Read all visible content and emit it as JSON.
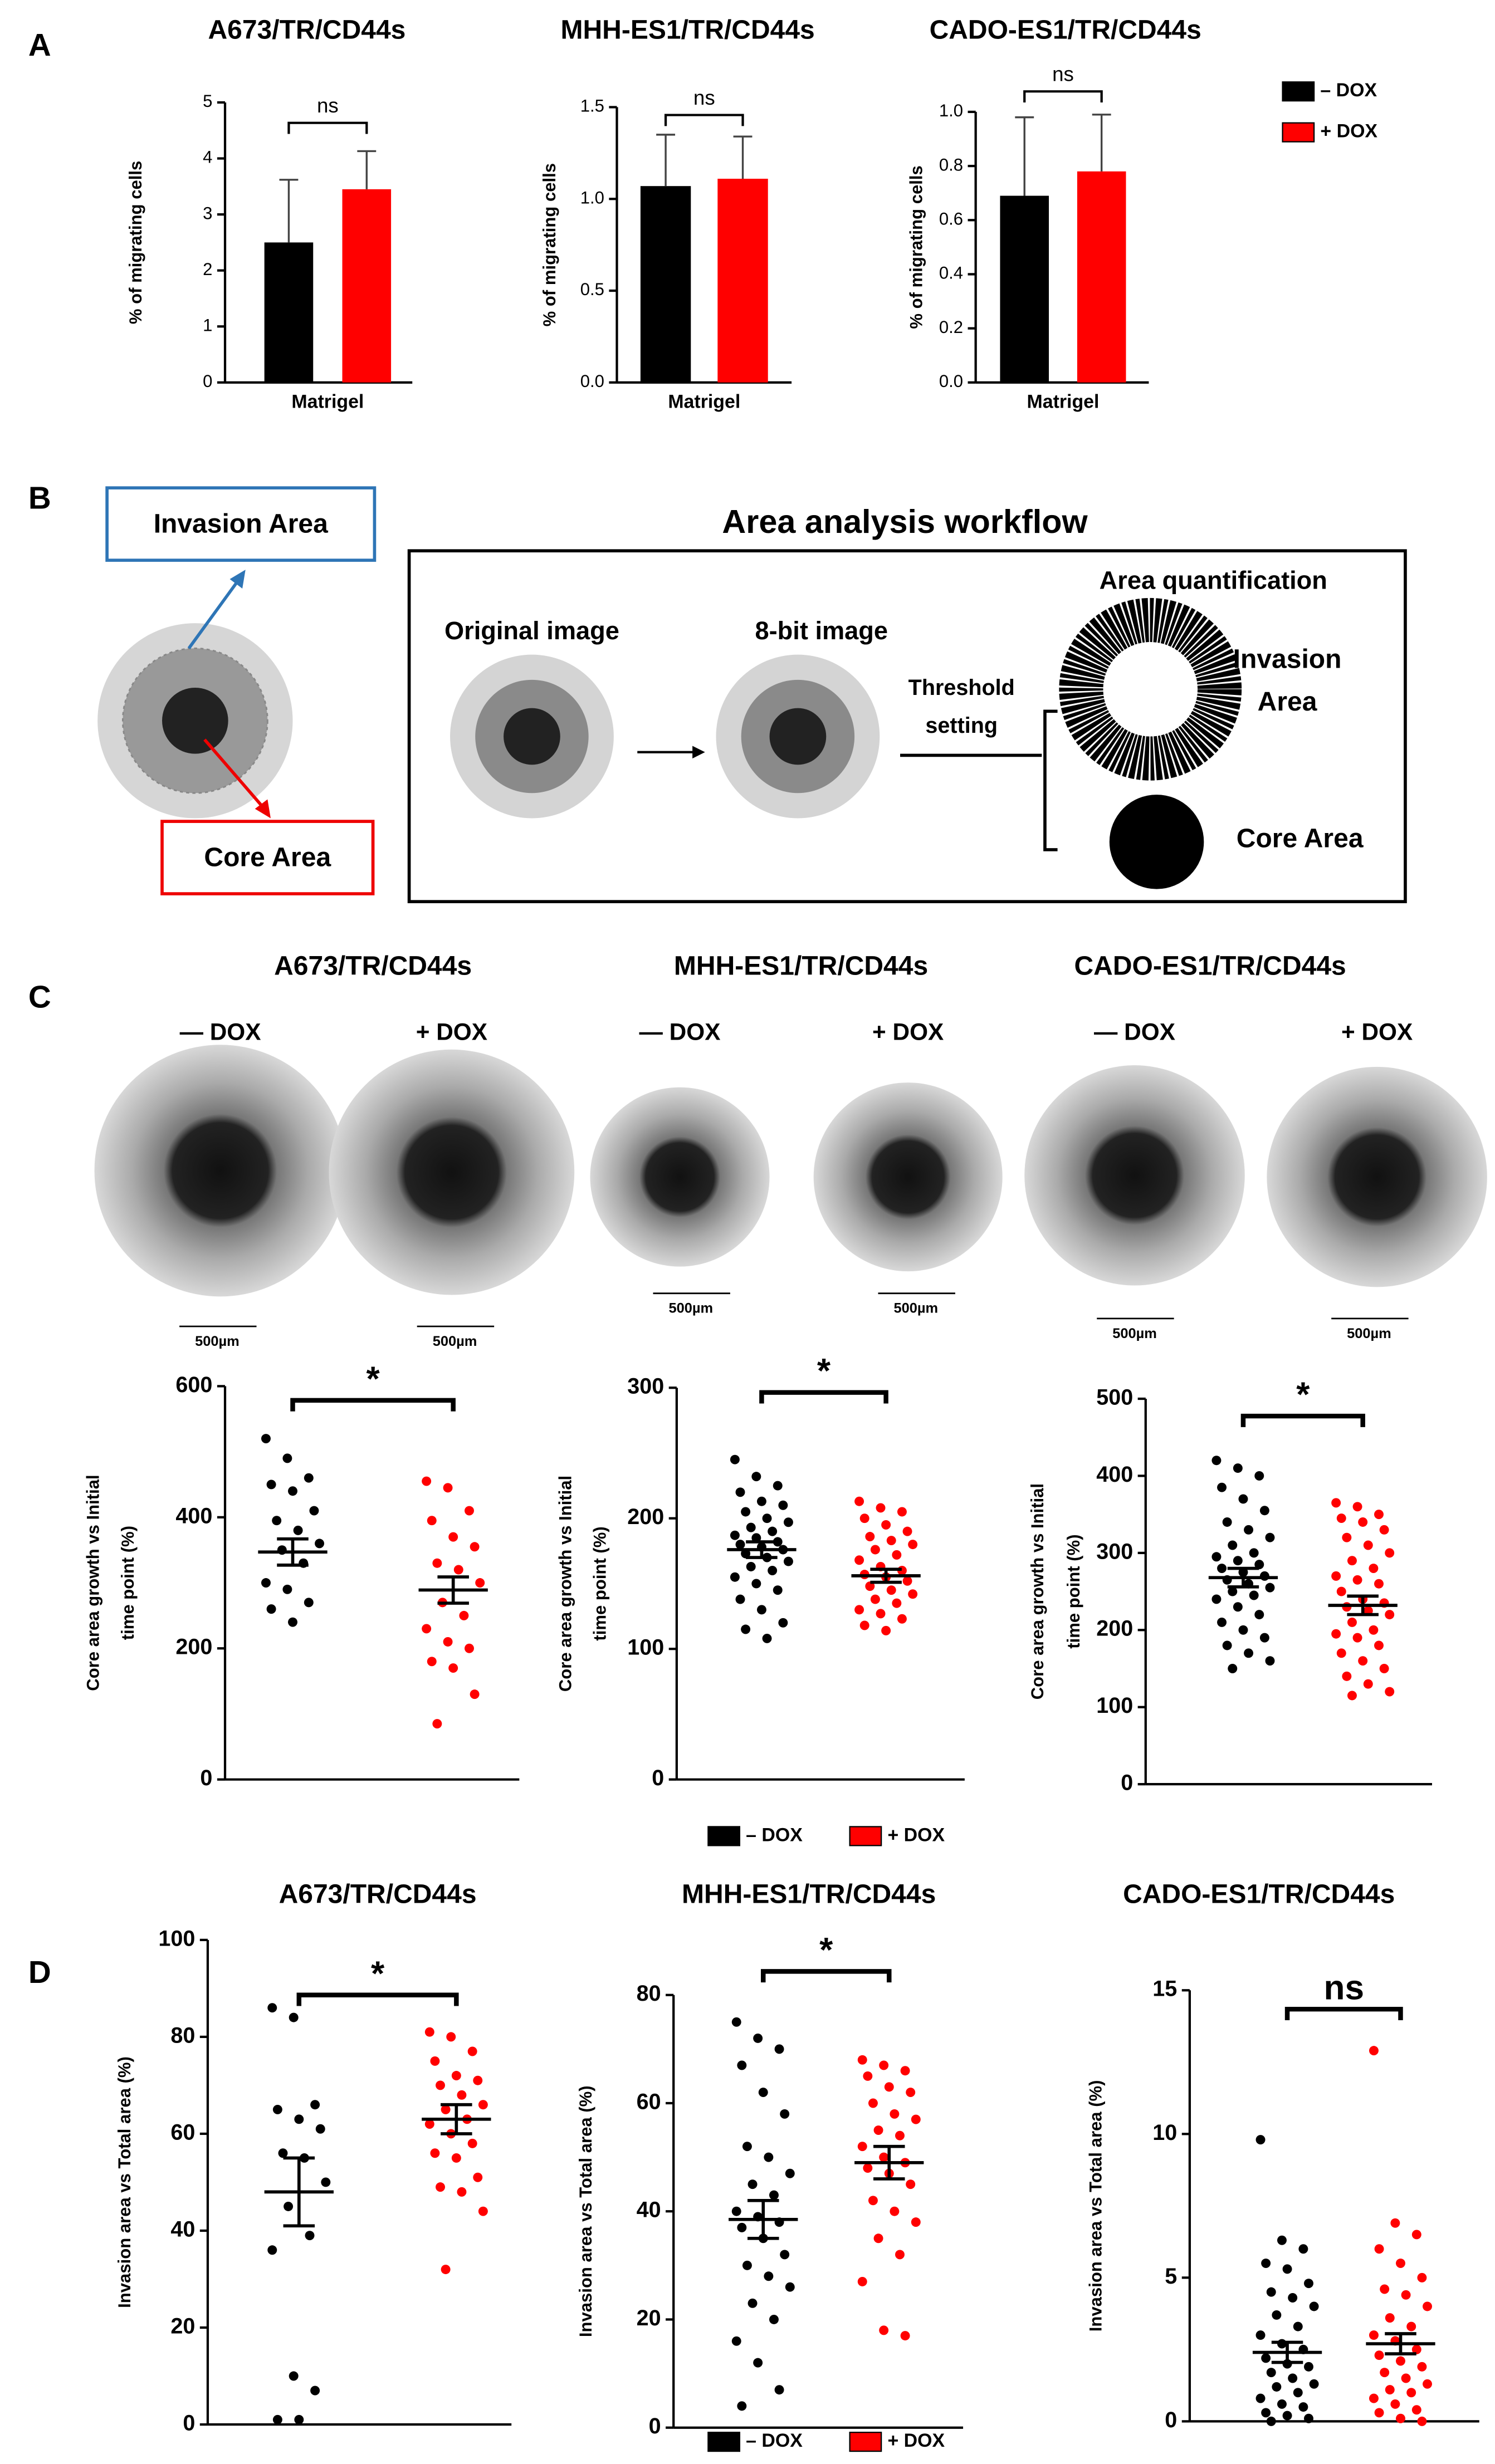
{
  "panel_labels": [
    "A",
    "B",
    "C",
    "D"
  ],
  "workflow": {
    "invasion_label": "Invasion Area",
    "core_label": "Core Area",
    "title": "Area analysis workflow",
    "original": "Original image",
    "eight_bit": "8-bit image",
    "threshold": [
      "Threshold",
      "setting"
    ],
    "quantification": "Area quantification",
    "invasion_area": [
      "Invasion",
      "Area"
    ],
    "core_area": "Core Area"
  },
  "images": {
    "conditions": [
      "— DOX",
      "+ DOX",
      "— DOX",
      "+ DOX",
      "— DOX",
      "+ DOX"
    ],
    "scale_bar": "500µm"
  },
  "chart_data": [
    {
      "type": "bar",
      "title": "A673/TR/CD44s",
      "ylabel": [
        "% of migrating cells"
      ],
      "categories": [
        "Matrigel"
      ],
      "series": [
        {
          "color": "#000000",
          "values": [
            2.5
          ],
          "errors": [
            1.12
          ]
        },
        {
          "color": "#ff0000",
          "values": [
            3.45
          ],
          "errors": [
            0.68
          ]
        }
      ],
      "ylim": [
        0,
        5
      ],
      "yticks": [
        0,
        1,
        2,
        3,
        4,
        5
      ],
      "annotation": "ns"
    },
    {
      "type": "bar",
      "title": "MHH-ES1/TR/CD44s",
      "ylabel": [
        "% of migrating cells"
      ],
      "categories": [
        "Matrigel"
      ],
      "series": [
        {
          "color": "#000000",
          "values": [
            1.07
          ],
          "errors": [
            0.28
          ]
        },
        {
          "color": "#ff0000",
          "values": [
            1.11
          ],
          "errors": [
            0.23
          ]
        }
      ],
      "ylim": [
        0,
        1.5
      ],
      "yticks": [
        {
          "value": 0,
          "label": "0.0"
        },
        0.5,
        {
          "value": 1,
          "label": "1.0"
        },
        1.5
      ],
      "annotation": "ns"
    },
    {
      "type": "bar",
      "title": "CADO-ES1/TR/CD44s",
      "ylabel": [
        "% of migrating cells"
      ],
      "categories": [
        "Matrigel"
      ],
      "series": [
        {
          "name": "– DOX",
          "color": "#000000",
          "values": [
            0.69
          ],
          "errors": [
            0.29
          ]
        },
        {
          "name": "+ DOX",
          "color": "#ff0000",
          "values": [
            0.78
          ],
          "errors": [
            0.21
          ]
        }
      ],
      "ylim": [
        0,
        1
      ],
      "yticks": [
        {
          "value": 0,
          "label": "0.0"
        },
        0.2,
        0.4,
        0.6,
        0.8,
        {
          "value": 1,
          "label": "1.0"
        }
      ],
      "annotation": "ns",
      "legend": "right"
    },
    {
      "type": "dot",
      "title": "A673/TR/CD44s",
      "ylabel": [
        "Core area growth vs Initial",
        "time point (%)"
      ],
      "series": [
        {
          "color": "#000000",
          "values": [
            520,
            490,
            460,
            450,
            440,
            410,
            395,
            380,
            360,
            350,
            330,
            300,
            290,
            270,
            260,
            240
          ],
          "mean": 347,
          "sem": 20
        },
        {
          "color": "#ff0000",
          "values": [
            455,
            445,
            410,
            395,
            370,
            355,
            330,
            320,
            300,
            270,
            250,
            230,
            210,
            200,
            180,
            170,
            130,
            85
          ],
          "mean": 289,
          "sem": 20
        }
      ],
      "ylim": [
        0,
        600
      ],
      "yticks": [
        0,
        200,
        400,
        600
      ],
      "annotation": "*"
    },
    {
      "type": "dot",
      "title": "MHH-ES1/TR/CD44s",
      "ylabel": [
        "Core area growth vs Initial",
        "time point (%)"
      ],
      "series": [
        {
          "name": "– DOX",
          "color": "#000000",
          "values": [
            245,
            232,
            225,
            220,
            213,
            210,
            205,
            200,
            197,
            193,
            190,
            187,
            185,
            182,
            180,
            178,
            176,
            173,
            170,
            167,
            163,
            160,
            155,
            150,
            145,
            138,
            130,
            120,
            115,
            108
          ],
          "mean": 176,
          "sem": 6
        },
        {
          "name": "+ DOX",
          "color": "#ff0000",
          "values": [
            213,
            208,
            205,
            200,
            195,
            190,
            186,
            183,
            180,
            176,
            172,
            168,
            163,
            160,
            157,
            155,
            152,
            148,
            145,
            142,
            138,
            135,
            130,
            127,
            123,
            118,
            114
          ],
          "mean": 156,
          "sem": 5
        }
      ],
      "ylim": [
        0,
        300
      ],
      "yticks": [
        0,
        100,
        200,
        300
      ],
      "annotation": "*",
      "legend": "bottom"
    },
    {
      "type": "dot",
      "title": "CADO-ES1/TR/CD44s",
      "ylabel": [
        "Core area growth vs Initial",
        "time point (%)"
      ],
      "series": [
        {
          "color": "#000000",
          "values": [
            420,
            410,
            400,
            385,
            370,
            355,
            340,
            330,
            320,
            310,
            300,
            295,
            290,
            285,
            280,
            275,
            270,
            265,
            260,
            255,
            250,
            245,
            240,
            230,
            220,
            210,
            200,
            190,
            180,
            170,
            160,
            150
          ],
          "mean": 268,
          "sem": 12
        },
        {
          "color": "#ff0000",
          "values": [
            365,
            360,
            350,
            345,
            340,
            330,
            320,
            310,
            300,
            290,
            280,
            270,
            265,
            260,
            250,
            240,
            235,
            230,
            225,
            220,
            210,
            200,
            195,
            190,
            180,
            170,
            160,
            150,
            140,
            130,
            120,
            115
          ],
          "mean": 232,
          "sem": 12
        }
      ],
      "ylim": [
        0,
        500
      ],
      "yticks": [
        0,
        100,
        200,
        300,
        400,
        500
      ],
      "annotation": "*"
    },
    {
      "type": "dot",
      "title": "A673/TR/CD44s",
      "ylabel": [
        "Invasion area vs Total area (%)"
      ],
      "series": [
        {
          "color": "#000000",
          "values": [
            86,
            84,
            66,
            65,
            63,
            61,
            56,
            55,
            50,
            45,
            39,
            36,
            10,
            7,
            1,
            1
          ],
          "mean": 48,
          "sem": 7
        },
        {
          "color": "#ff0000",
          "values": [
            81,
            80,
            77,
            75,
            72,
            71,
            70,
            68,
            66,
            65,
            63,
            62,
            60,
            58,
            56,
            55,
            51,
            49,
            48,
            44,
            32
          ],
          "mean": 63,
          "sem": 3
        }
      ],
      "ylim": [
        0,
        100
      ],
      "yticks": [
        0,
        20,
        40,
        60,
        80,
        100
      ],
      "annotation": "*"
    },
    {
      "type": "dot",
      "title": "MHH-ES1/TR/CD44s",
      "ylabel": [
        "Invasion area vs Total area (%)"
      ],
      "series": [
        {
          "name": "– DOX",
          "color": "#000000",
          "values": [
            75,
            72,
            70,
            67,
            62,
            58,
            52,
            50,
            47,
            45,
            43,
            40,
            39,
            38,
            37,
            35,
            32,
            30,
            28,
            26,
            23,
            20,
            16,
            12,
            7,
            4
          ],
          "mean": 38.5,
          "sem": 3.5
        },
        {
          "name": "+ DOX",
          "color": "#ff0000",
          "values": [
            68,
            67,
            66,
            65,
            63,
            62,
            60,
            58,
            57,
            55,
            54,
            52,
            50,
            49,
            48,
            47,
            45,
            42,
            40,
            38,
            35,
            32,
            27,
            18,
            17
          ],
          "mean": 49,
          "sem": 3
        }
      ],
      "ylim": [
        0,
        80
      ],
      "yticks": [
        0,
        20,
        40,
        60,
        80
      ],
      "annotation": "*",
      "legend": "bottom"
    },
    {
      "type": "dot",
      "title": "CADO-ES1/TR/CD44s",
      "ylabel": [
        "Invasion area vs Total area (%)"
      ],
      "series": [
        {
          "color": "#000000",
          "values": [
            9.8,
            6.3,
            6.0,
            5.5,
            5.3,
            4.8,
            4.5,
            4.3,
            4.0,
            3.7,
            3.3,
            3.0,
            2.7,
            2.5,
            2.2,
            2.0,
            1.9,
            1.7,
            1.5,
            1.3,
            1.2,
            1.0,
            0.8,
            0.6,
            0.5,
            0.3,
            0.2,
            0.1,
            0
          ],
          "mean": 2.4,
          "sem": 0.35
        },
        {
          "color": "#ff0000",
          "values": [
            12.9,
            6.9,
            6.5,
            6.0,
            5.5,
            5.0,
            4.6,
            4.4,
            4.0,
            3.6,
            3.3,
            3.0,
            2.8,
            2.5,
            2.3,
            2.1,
            1.9,
            1.7,
            1.5,
            1.3,
            1.1,
            1.0,
            0.8,
            0.6,
            0.4,
            0.3,
            0.1,
            0
          ],
          "mean": 2.7,
          "sem": 0.35
        }
      ],
      "ylim": [
        0,
        15
      ],
      "yticks": [
        0,
        5,
        10,
        15
      ],
      "annotation": "ns"
    }
  ]
}
